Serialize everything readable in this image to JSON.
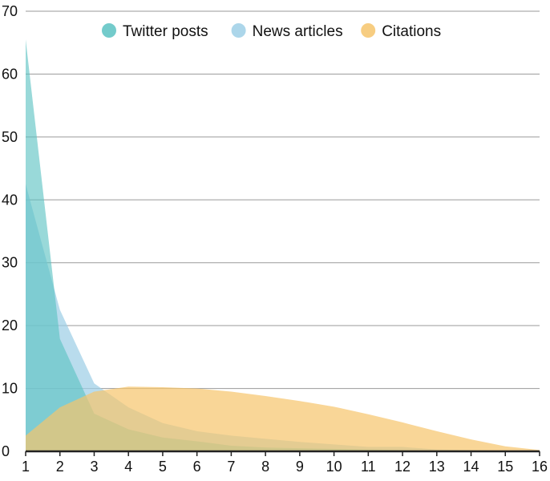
{
  "chart_data": {
    "type": "area",
    "x": [
      1,
      2,
      3,
      4,
      5,
      6,
      7,
      8,
      9,
      10,
      11,
      12,
      13,
      14,
      15,
      16
    ],
    "xlim": [
      1,
      16
    ],
    "ylim": [
      0,
      70
    ],
    "y_ticks": [
      0,
      10,
      20,
      30,
      40,
      50,
      60,
      70
    ],
    "x_ticks": [
      1,
      2,
      3,
      4,
      5,
      6,
      7,
      8,
      9,
      10,
      11,
      12,
      13,
      14,
      15,
      16
    ],
    "grid": true,
    "legend_position": "top",
    "title": "",
    "xlabel": "",
    "ylabel": "",
    "series": [
      {
        "name": "Twitter posts",
        "color": "#5bc2c2",
        "values": [
          65.5,
          17.9,
          6.0,
          3.5,
          2.2,
          1.6,
          0.9,
          0.6,
          0.5,
          0.4,
          0.3,
          0.2,
          0.1,
          0.1,
          0.1,
          0.1
        ]
      },
      {
        "name": "News articles",
        "color": "#9ecfe6",
        "values": [
          42.5,
          22.5,
          10.8,
          7.0,
          4.5,
          3.2,
          2.5,
          2.0,
          1.5,
          1.1,
          0.7,
          0.7,
          0.3,
          0.2,
          0.1,
          0.1
        ]
      },
      {
        "name": "Citations",
        "color": "#f6c46b",
        "values": [
          2.5,
          7.0,
          9.5,
          10.3,
          10.2,
          10.0,
          9.5,
          8.8,
          8.0,
          7.1,
          5.9,
          4.6,
          3.2,
          1.9,
          0.8,
          0.2
        ]
      }
    ]
  }
}
